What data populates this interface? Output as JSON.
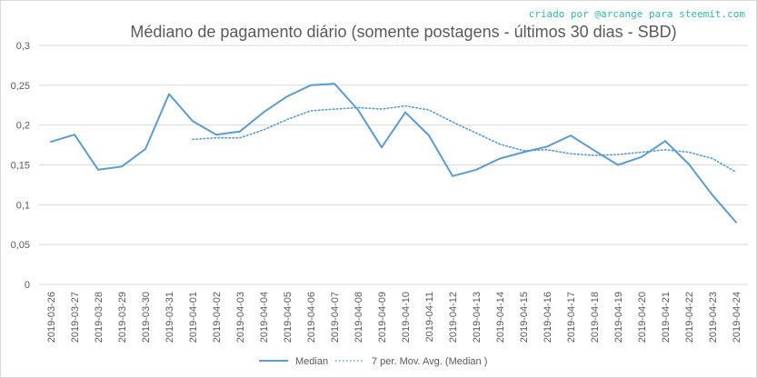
{
  "credit": "criado por @arcange para steemit.com",
  "colors": {
    "series": "#5b9bd5",
    "credit": "#2fb8b0",
    "grid": "#d9d9d9",
    "text": "#595959"
  },
  "chart_data": {
    "type": "line",
    "title": "Médiano de pagamento diário (somente postagens - últimos 30 dias - SBD)",
    "xlabel": "",
    "ylabel": "",
    "ylim": [
      0,
      0.3
    ],
    "yticks": [
      "0",
      "0,05",
      "0,1",
      "0,15",
      "0,2",
      "0,25",
      "0,3"
    ],
    "yticks_values": [
      0,
      0.05,
      0.1,
      0.15,
      0.2,
      0.25,
      0.3
    ],
    "grid": "horizontal",
    "legend_position": "bottom",
    "categories": [
      "2019-03-26",
      "2019-03-27",
      "2019-03-28",
      "2019-03-29",
      "2019-03-30",
      "2019-03-31",
      "2019-04-01",
      "2019-04-02",
      "2019-04-03",
      "2019-04-04",
      "2019-04-05",
      "2019-04-06",
      "2019-04-07",
      "2019-04-08",
      "2019-04-09",
      "2019-04-10",
      "2019-04-11",
      "2019-04-12",
      "2019-04-13",
      "2019-04-14",
      "2019-04-15",
      "2019-04-16",
      "2019-04-17",
      "2019-04-18",
      "2019-04-19",
      "2019-04-20",
      "2019-04-21",
      "2019-04-22",
      "2019-04-23",
      "2019-04-24"
    ],
    "series": [
      {
        "name": "Median",
        "style": "solid",
        "values": [
          0.179,
          0.188,
          0.144,
          0.148,
          0.17,
          0.239,
          0.205,
          0.188,
          0.192,
          0.216,
          0.236,
          0.25,
          0.252,
          0.219,
          0.172,
          0.216,
          0.187,
          0.136,
          0.144,
          0.158,
          0.166,
          0.173,
          0.187,
          0.168,
          0.15,
          0.16,
          0.18,
          0.151,
          0.112,
          0.078
        ]
      },
      {
        "name": "7 per. Mov. Avg. (Median )",
        "style": "dotted",
        "values": [
          null,
          null,
          null,
          null,
          null,
          null,
          0.182,
          0.184,
          0.184,
          0.194,
          0.207,
          0.218,
          0.22,
          0.222,
          0.22,
          0.224,
          0.219,
          0.204,
          0.19,
          0.176,
          0.168,
          0.169,
          0.164,
          0.162,
          0.163,
          0.166,
          0.169,
          0.166,
          0.158,
          0.141
        ]
      }
    ]
  }
}
